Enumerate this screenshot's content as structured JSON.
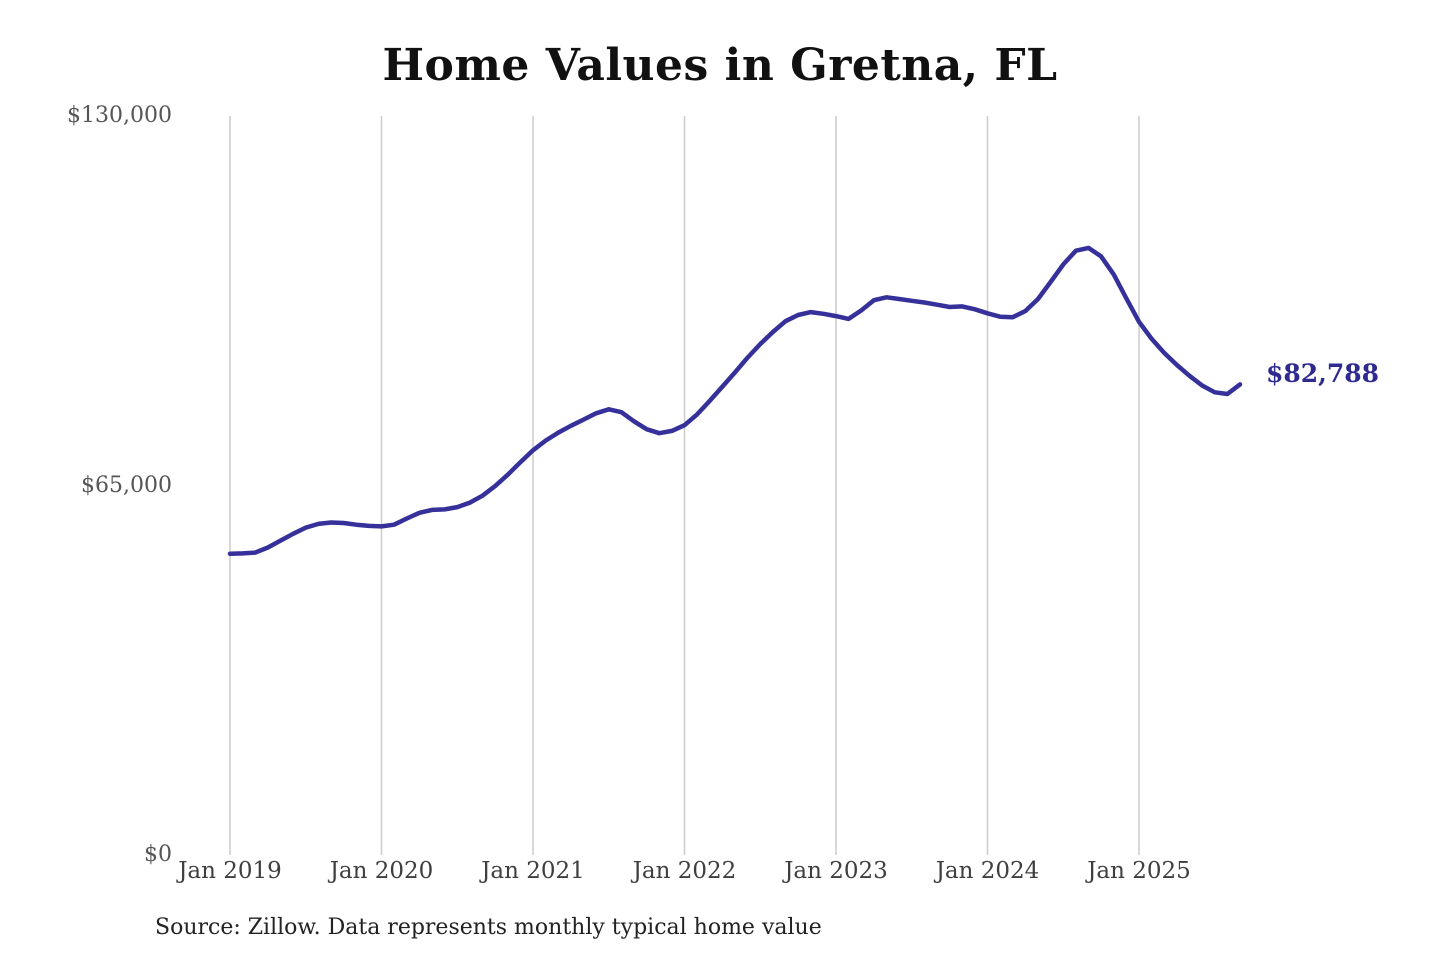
{
  "title": "Home Values in Gretna, FL",
  "source_note": "Source: Zillow. Data represents monthly typical home value",
  "colors": {
    "line": "#35309a",
    "grid": "#cccccc",
    "title_text": "#111111",
    "y_axis_text": "#555555",
    "x_axis_text": "#3f3f3f",
    "end_label_text": "#2e2a90",
    "source_text": "#222222",
    "background": "#ffffff"
  },
  "chart_data": {
    "type": "line",
    "title": "Home Values in Gretna, FL",
    "x_tick_labels": [
      "Jan 2019",
      "Jan 2020",
      "Jan 2021",
      "Jan 2022",
      "Jan 2023",
      "Jan 2024",
      "Jan 2025"
    ],
    "y_ticks": [
      {
        "label": "$130,000",
        "value": 130000
      },
      {
        "label": "$65,000",
        "value": 65000
      },
      {
        "label": "$0",
        "value": 0
      }
    ],
    "ylim": [
      0,
      130000
    ],
    "grid": "vertical-only",
    "legend": "none",
    "x_start_month": "Jan 2019",
    "x_end_month": "Sep 2025",
    "x_frequency": "monthly",
    "end_label": "$82,788",
    "end_value": 82788,
    "series": [
      {
        "name": "Monthly typical home value",
        "values": [
          53000,
          53050,
          53200,
          54100,
          55300,
          56500,
          57600,
          58250,
          58500,
          58400,
          58100,
          57900,
          57800,
          58100,
          59200,
          60200,
          60700,
          60800,
          61200,
          62000,
          63200,
          64900,
          66900,
          69100,
          71200,
          72900,
          74300,
          75500,
          76600,
          77700,
          78400,
          77900,
          76300,
          74900,
          74200,
          74600,
          75600,
          77500,
          79900,
          82400,
          84900,
          87500,
          89900,
          92000,
          93900,
          95000,
          95500,
          95200,
          94800,
          94300,
          95800,
          97600,
          98100,
          97800,
          97500,
          97200,
          96800,
          96400,
          96500,
          96000,
          95300,
          94700,
          94600,
          95700,
          97800,
          100800,
          103900,
          106300,
          106800,
          105300,
          102100,
          97900,
          93800,
          90800,
          88300,
          86200,
          84300,
          82600,
          81400,
          81100,
          82788
        ]
      }
    ]
  }
}
